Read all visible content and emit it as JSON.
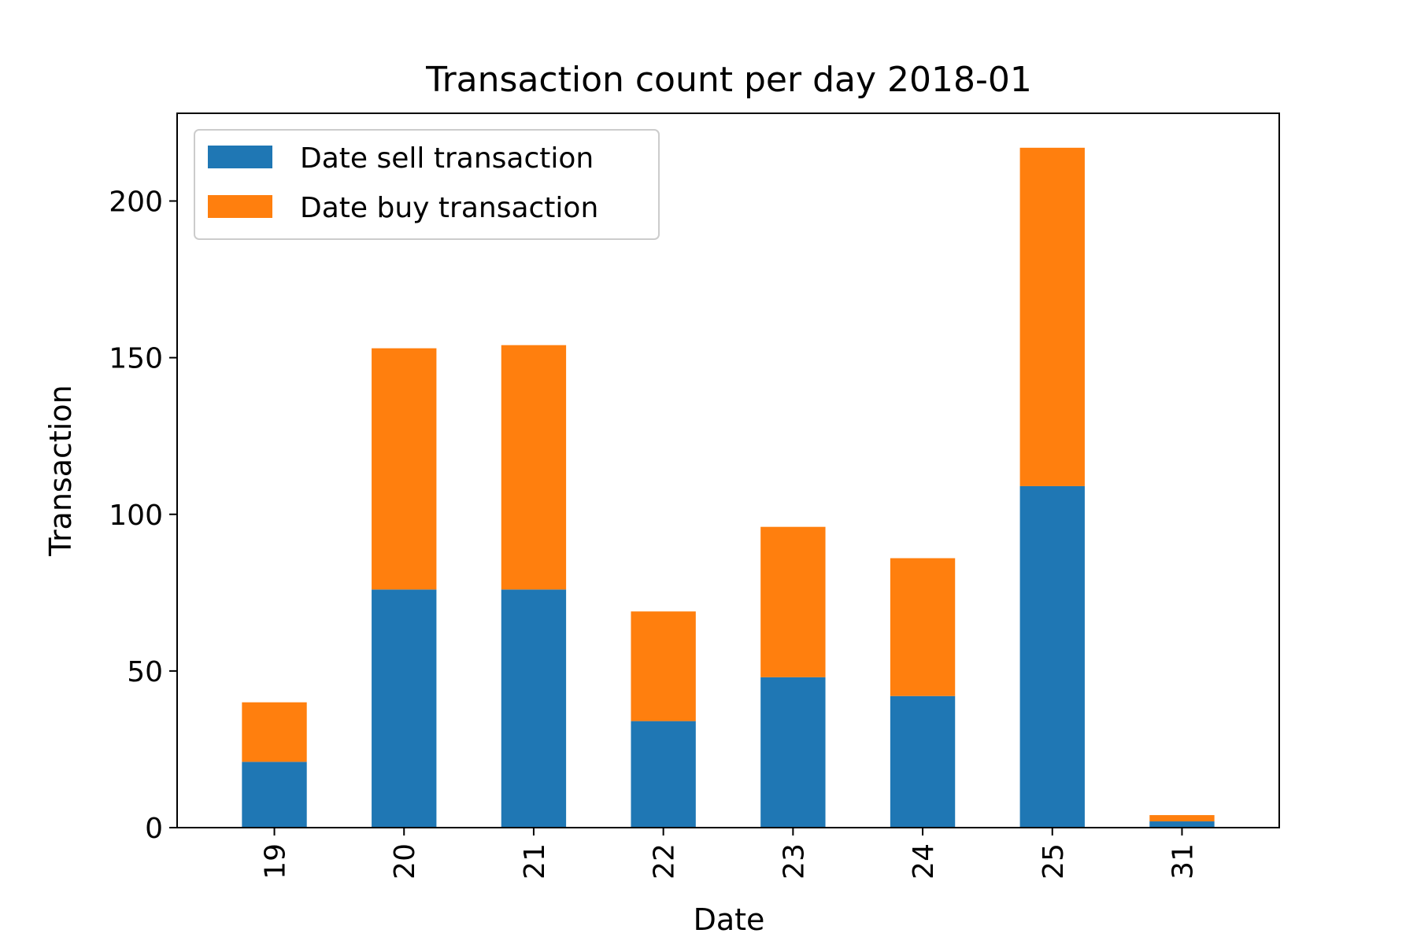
{
  "chart_data": {
    "type": "bar",
    "stacked": true,
    "title": "Transaction count per day 2018-01",
    "xlabel": "Date",
    "ylabel": "Transaction",
    "categories": [
      "19",
      "20",
      "21",
      "22",
      "23",
      "24",
      "25",
      "31"
    ],
    "series": [
      {
        "name": "Date sell transaction",
        "color": "#1f77b4",
        "values": [
          21,
          76,
          76,
          34,
          48,
          42,
          109,
          2
        ]
      },
      {
        "name": "Date buy transaction",
        "color": "#ff7f0e",
        "values": [
          19,
          77,
          78,
          35,
          48,
          44,
          108,
          2
        ]
      }
    ],
    "ylim": [
      0,
      228
    ],
    "yticks": [
      0,
      50,
      100,
      150,
      200
    ],
    "x_tick_rotation": 90,
    "grid": false,
    "legend_position": "upper left"
  }
}
